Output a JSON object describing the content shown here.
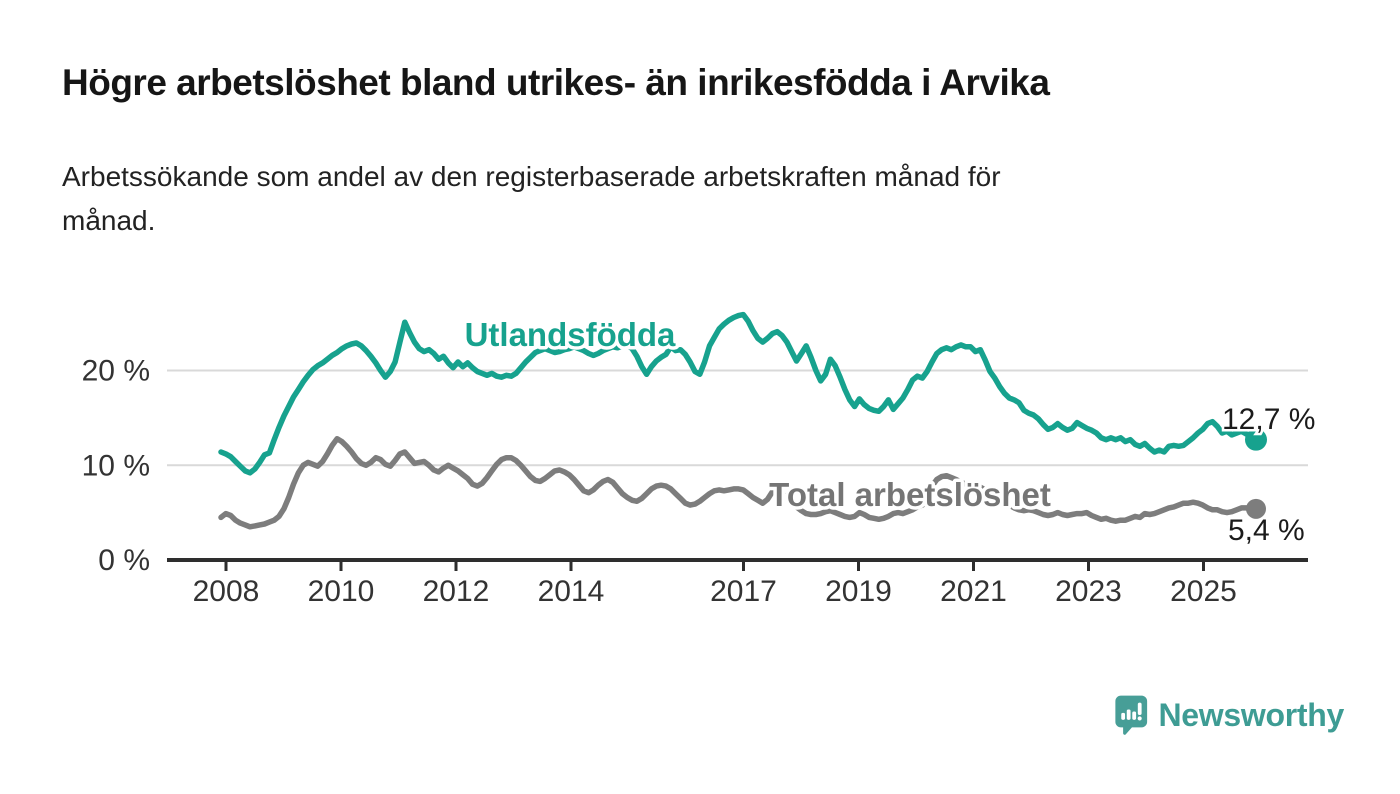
{
  "page": {
    "title": "Högre arbetslöshet bland utrikes- än inrikesfödda i Arvika",
    "subtitle_line1": "Arbetssökande som andel av den registerbaserade arbetskraften månad för",
    "subtitle_line2": "månad."
  },
  "branding": {
    "label": "Newsworthy",
    "icon": "newsworthy-speech-bubble-chart-icon",
    "icon_color": "#479e97",
    "text_color": "#3e9c94"
  },
  "colors": {
    "foreign_born_series": "#17a28e",
    "total_series": "#7d7d7d",
    "grid": "#d9d9d9",
    "axis": "#2e2e2e",
    "tick_text": "#333333",
    "title_text": "#161616"
  },
  "chart_data": {
    "type": "line",
    "unit": "%",
    "frequency": "monthly",
    "start": "2008-01",
    "end": "2025-11",
    "grid": "horizontal",
    "legend_position": "inline-labels",
    "ylim": [
      0,
      27
    ],
    "x_ticks": [
      "2008",
      "2010",
      "2012",
      "2014",
      "2017",
      "2019",
      "2021",
      "2023",
      "2025"
    ],
    "y_ticks": [
      {
        "value": 0,
        "label": "0 %"
      },
      {
        "value": 10,
        "label": "10 %"
      },
      {
        "value": 20,
        "label": "20 %"
      }
    ],
    "series": [
      {
        "name": "Utlandsfödda",
        "color": "#17a28e",
        "end_value": 12.7,
        "end_label": "12,7 %",
        "values": [
          11.4,
          11.2,
          10.9,
          10.4,
          9.9,
          9.4,
          9.2,
          9.6,
          10.3,
          11.1,
          11.3,
          12.7,
          14.0,
          15.2,
          16.2,
          17.2,
          18.0,
          18.8,
          19.5,
          20.1,
          20.5,
          20.8,
          21.2,
          21.6,
          21.9,
          22.3,
          22.6,
          22.8,
          22.9,
          22.6,
          22.1,
          21.5,
          20.8,
          20.0,
          19.3,
          19.9,
          20.9,
          23.0,
          25.1,
          24.0,
          23.0,
          22.3,
          22.0,
          22.2,
          21.8,
          21.2,
          21.5,
          20.8,
          20.3,
          20.9,
          20.4,
          20.8,
          20.3,
          19.9,
          19.7,
          19.5,
          19.7,
          19.4,
          19.3,
          19.5,
          19.4,
          19.7,
          20.3,
          20.9,
          21.4,
          21.9,
          22.1,
          22.3,
          22.1,
          21.9,
          22.0,
          22.2,
          22.3,
          22.5,
          22.3,
          22.1,
          21.8,
          21.6,
          21.8,
          22.1,
          22.3,
          22.5,
          22.4,
          22.6,
          22.7,
          22.3,
          21.5,
          20.4,
          19.6,
          20.4,
          21.0,
          21.4,
          21.7,
          22.5,
          22.1,
          22.2,
          21.7,
          20.9,
          19.9,
          19.6,
          20.9,
          22.6,
          23.5,
          24.4,
          24.9,
          25.3,
          25.6,
          25.8,
          25.9,
          25.2,
          24.2,
          23.4,
          23.0,
          23.4,
          23.9,
          24.1,
          23.7,
          23.0,
          22.0,
          21.0,
          21.8,
          22.6,
          21.4,
          20.0,
          18.9,
          19.6,
          21.2,
          20.5,
          19.3,
          18.0,
          16.9,
          16.2,
          17.0,
          16.4,
          16.0,
          15.8,
          15.7,
          16.2,
          16.9,
          15.9,
          16.5,
          17.1,
          18.0,
          19.0,
          19.4,
          19.2,
          19.9,
          20.9,
          21.8,
          22.2,
          22.4,
          22.2,
          22.5,
          22.7,
          22.5,
          22.5,
          22.0,
          22.2,
          21.1,
          19.9,
          19.2,
          18.3,
          17.6,
          17.1,
          16.9,
          16.6,
          15.8,
          15.5,
          15.3,
          14.9,
          14.3,
          13.8,
          14.0,
          14.4,
          14.0,
          13.7,
          13.9,
          14.5,
          14.2,
          13.9,
          13.7,
          13.4,
          12.9,
          12.7,
          12.9,
          12.7,
          12.9,
          12.5,
          12.7,
          12.2,
          12.0,
          12.3,
          11.8,
          11.4,
          11.6,
          11.4,
          12.0,
          12.1,
          12.0,
          12.1,
          12.5,
          12.9,
          13.4,
          13.8,
          14.4,
          14.6,
          14.1,
          13.4,
          13.6,
          13.2,
          13.4,
          13.6,
          13.3,
          12.9,
          12.7
        ]
      },
      {
        "name": "Total arbetslöshet",
        "color": "#7d7d7d",
        "end_value": 5.4,
        "end_label": "5,4 %",
        "values": [
          4.5,
          4.9,
          4.7,
          4.2,
          3.9,
          3.7,
          3.5,
          3.6,
          3.7,
          3.8,
          4.0,
          4.2,
          4.6,
          5.4,
          6.6,
          8.0,
          9.2,
          10.0,
          10.3,
          10.1,
          9.9,
          10.4,
          11.2,
          12.1,
          12.8,
          12.5,
          12.0,
          11.4,
          10.7,
          10.2,
          10.0,
          10.3,
          10.8,
          10.6,
          10.1,
          9.9,
          10.5,
          11.2,
          11.4,
          10.8,
          10.2,
          10.3,
          10.4,
          10.0,
          9.5,
          9.3,
          9.7,
          10.0,
          9.7,
          9.4,
          9.0,
          8.6,
          8.0,
          7.8,
          8.1,
          8.7,
          9.4,
          10.1,
          10.6,
          10.8,
          10.8,
          10.5,
          10.0,
          9.4,
          8.8,
          8.4,
          8.3,
          8.6,
          9.0,
          9.4,
          9.5,
          9.3,
          9.0,
          8.5,
          7.9,
          7.3,
          7.1,
          7.4,
          7.9,
          8.3,
          8.5,
          8.2,
          7.6,
          7.0,
          6.6,
          6.3,
          6.2,
          6.5,
          7.0,
          7.5,
          7.8,
          7.9,
          7.8,
          7.5,
          7.0,
          6.5,
          6.0,
          5.8,
          5.9,
          6.2,
          6.6,
          7.0,
          7.3,
          7.4,
          7.3,
          7.4,
          7.5,
          7.5,
          7.4,
          7.0,
          6.6,
          6.3,
          6.0,
          6.4,
          7.2,
          7.4,
          7.0,
          6.5,
          6.0,
          5.6,
          5.2,
          4.9,
          4.8,
          4.8,
          4.9,
          5.1,
          5.2,
          5.0,
          4.8,
          4.6,
          4.5,
          4.6,
          5.0,
          4.8,
          4.5,
          4.4,
          4.3,
          4.4,
          4.6,
          4.9,
          5.0,
          4.9,
          5.1,
          5.3,
          5.6,
          5.8,
          6.5,
          7.8,
          8.5,
          8.8,
          8.9,
          8.7,
          8.5,
          8.2,
          8.0,
          7.9,
          7.8,
          7.7,
          7.4,
          7.0,
          6.7,
          6.4,
          6.1,
          5.8,
          5.5,
          5.3,
          5.2,
          5.3,
          5.2,
          5.0,
          4.8,
          4.7,
          4.8,
          5.0,
          4.8,
          4.7,
          4.8,
          4.9,
          4.9,
          5.0,
          4.7,
          4.5,
          4.3,
          4.4,
          4.2,
          4.1,
          4.2,
          4.2,
          4.4,
          4.6,
          4.5,
          4.9,
          4.8,
          4.9,
          5.1,
          5.3,
          5.5,
          5.6,
          5.8,
          6.0,
          6.0,
          6.1,
          6.0,
          5.8,
          5.5,
          5.3,
          5.3,
          5.1,
          5.0,
          5.1,
          5.3,
          5.5,
          5.5,
          5.4,
          5.4
        ]
      }
    ]
  }
}
